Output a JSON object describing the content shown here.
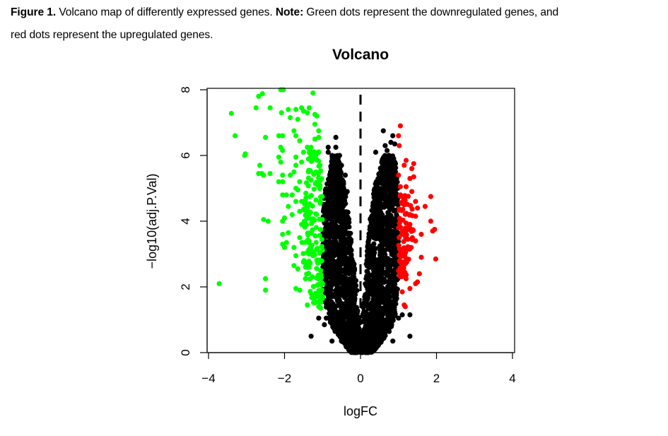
{
  "caption": {
    "figure_label": "Figure 1.",
    "text1": " Volcano map of differently expressed genes. ",
    "note_label": "Note:",
    "text2": " Green dots represent the downregulated genes, and",
    "line2": "red dots represent the upregulated genes."
  },
  "chart_data": {
    "type": "scatter",
    "title": "Volcano",
    "xlabel": "logFC",
    "ylabel": "−log10(adj.P.Val)",
    "xlim": [
      -4,
      4
    ],
    "ylim": [
      0,
      8
    ],
    "xticks": [
      -4,
      -2,
      0,
      2,
      4
    ],
    "xtick_labels": [
      "−4",
      "−2",
      "0",
      "2",
      "4"
    ],
    "yticks": [
      0,
      2,
      4,
      6,
      8
    ],
    "ytick_labels": [
      "0",
      "2",
      "4",
      "6",
      "8"
    ],
    "grid": false,
    "legend": "none",
    "reference_line": {
      "x": 0,
      "style": "dashed",
      "color": "#000000"
    },
    "colors": {
      "down": "#00ff00",
      "up": "#ff0000",
      "ns": "#000000"
    },
    "series": [
      {
        "name": "not significant",
        "color": "#000000",
        "density_envelope": [
          {
            "y": 0.0,
            "left": [
              -0.25,
              0.0
            ],
            "right": [
              0.0,
              0.3
            ]
          },
          {
            "y": 0.5,
            "left": [
              -0.6,
              -0.02
            ],
            "right": [
              0.02,
              0.7
            ]
          },
          {
            "y": 1.0,
            "left": [
              -0.85,
              -0.05
            ],
            "right": [
              0.05,
              0.9
            ]
          },
          {
            "y": 2.0,
            "left": [
              -1.0,
              -0.1
            ],
            "right": [
              0.1,
              1.0
            ]
          },
          {
            "y": 3.0,
            "left": [
              -1.0,
              -0.2
            ],
            "right": [
              0.17,
              1.0
            ]
          },
          {
            "y": 4.0,
            "left": [
              -1.0,
              -0.3
            ],
            "right": [
              0.25,
              1.0
            ]
          },
          {
            "y": 5.0,
            "left": [
              -0.95,
              -0.4
            ],
            "right": [
              0.35,
              0.98
            ]
          },
          {
            "y": 5.5,
            "left": [
              -0.8,
              -0.5
            ],
            "right": [
              0.5,
              0.95
            ]
          },
          {
            "y": 6.0,
            "left": [
              -0.75,
              -0.6
            ],
            "right": [
              0.6,
              0.9
            ]
          }
        ],
        "density_count": 2600,
        "points": [
          [
            -0.65,
            6.55
          ],
          [
            -0.85,
            6.25
          ],
          [
            -0.65,
            6.25
          ],
          [
            -0.55,
            6.0
          ],
          [
            -0.6,
            5.75
          ],
          [
            -0.5,
            5.7
          ],
          [
            -0.4,
            5.4
          ],
          [
            -0.45,
            5.2
          ],
          [
            -0.35,
            4.9
          ],
          [
            0.6,
            6.75
          ],
          [
            0.85,
            6.6
          ],
          [
            0.8,
            6.4
          ],
          [
            0.9,
            6.35
          ],
          [
            0.4,
            6.1
          ],
          [
            0.65,
            6.3
          ],
          [
            0.85,
            5.8
          ],
          [
            0.95,
            5.3
          ],
          [
            -1.3,
            0.5
          ],
          [
            -0.75,
            0.35
          ],
          [
            1.3,
            0.5
          ],
          [
            1.3,
            1.15
          ],
          [
            0.85,
            0.35
          ],
          [
            -1.1,
            1.05
          ],
          [
            -0.9,
            1.05
          ],
          [
            -0.95,
            0.85
          ],
          [
            1.0,
            1.05
          ],
          [
            1.1,
            1.15
          ],
          [
            0.5,
            0.4
          ],
          [
            -0.5,
            0.35
          ],
          [
            -0.85,
            6.1
          ],
          [
            -0.75,
            6.0
          ],
          [
            0.7,
            6.15
          ],
          [
            0.75,
            6.0
          ]
        ]
      },
      {
        "name": "downregulated",
        "color": "#00ff00",
        "density_envelope": [
          {
            "y": 1.5,
            "left": [
              -1.25,
              -1.0
            ]
          },
          {
            "y": 3.0,
            "left": [
              -1.55,
              -1.0
            ]
          },
          {
            "y": 5.0,
            "left": [
              -1.5,
              -1.0
            ]
          },
          {
            "y": 6.2,
            "left": [
              -1.35,
              -1.05
            ]
          }
        ],
        "density_count": 160,
        "points": [
          [
            -3.72,
            2.1
          ],
          [
            -3.4,
            7.28
          ],
          [
            -3.3,
            6.6
          ],
          [
            -3.05,
            6.0
          ],
          [
            -3.03,
            6.05
          ],
          [
            -2.75,
            7.45
          ],
          [
            -2.68,
            7.8
          ],
          [
            -2.58,
            7.88
          ],
          [
            -2.38,
            7.45
          ],
          [
            -2.68,
            5.45
          ],
          [
            -2.6,
            5.45
          ],
          [
            -2.55,
            5.4
          ],
          [
            -2.65,
            5.7
          ],
          [
            -2.38,
            5.45
          ],
          [
            -2.5,
            6.55
          ],
          [
            -2.55,
            4.05
          ],
          [
            -2.43,
            4.0
          ],
          [
            -2.5,
            2.25
          ],
          [
            -2.5,
            1.9
          ],
          [
            -2.1,
            8.0
          ],
          [
            -2.03,
            8.0
          ],
          [
            -2.08,
            7.3
          ],
          [
            -2.05,
            6.6
          ],
          [
            -2.15,
            6.6
          ],
          [
            -2.1,
            6.25
          ],
          [
            -2.05,
            6.15
          ],
          [
            -2.15,
            5.95
          ],
          [
            -2.1,
            5.8
          ],
          [
            -2.05,
            5.4
          ],
          [
            -2.15,
            5.2
          ],
          [
            -2.05,
            5.2
          ],
          [
            -2.05,
            4.8
          ],
          [
            -1.95,
            4.8
          ],
          [
            -2.05,
            4.0
          ],
          [
            -2.0,
            4.1
          ],
          [
            -2.05,
            3.6
          ],
          [
            -2.05,
            3.3
          ],
          [
            -2.0,
            3.2
          ],
          [
            -1.95,
            3.35
          ],
          [
            -1.9,
            3.65
          ],
          [
            -1.9,
            4.45
          ],
          [
            -1.8,
            4.2
          ],
          [
            -1.85,
            5.4
          ],
          [
            -1.9,
            7.4
          ],
          [
            -1.85,
            7.15
          ],
          [
            -1.75,
            6.75
          ],
          [
            -1.7,
            6.6
          ],
          [
            -1.7,
            7.4
          ],
          [
            -1.7,
            5.95
          ],
          [
            -1.65,
            7.1
          ],
          [
            -1.6,
            6.45
          ],
          [
            -1.55,
            7.45
          ],
          [
            -1.5,
            7.35
          ],
          [
            -1.4,
            7.3
          ],
          [
            -1.35,
            7.45
          ],
          [
            -1.25,
            7.9
          ],
          [
            -1.2,
            7.25
          ],
          [
            -1.15,
            7.2
          ],
          [
            -1.2,
            6.95
          ],
          [
            -1.1,
            6.75
          ],
          [
            -1.2,
            6.5
          ],
          [
            -1.1,
            6.55
          ],
          [
            -1.1,
            6.1
          ],
          [
            -1.3,
            6.25
          ],
          [
            -1.4,
            6.25
          ],
          [
            -1.5,
            6.1
          ],
          [
            -1.55,
            5.8
          ],
          [
            -1.7,
            5.7
          ],
          [
            -1.75,
            5.5
          ],
          [
            -1.6,
            5.2
          ],
          [
            -1.7,
            5.0
          ],
          [
            -1.7,
            4.6
          ],
          [
            -1.6,
            4.3
          ],
          [
            -1.75,
            3.2
          ],
          [
            -1.7,
            2.95
          ],
          [
            -1.75,
            2.65
          ],
          [
            -1.65,
            2.55
          ],
          [
            -1.5,
            2.75
          ],
          [
            -1.45,
            2.25
          ],
          [
            -1.45,
            2.6
          ],
          [
            -1.7,
            1.95
          ],
          [
            -1.6,
            1.9
          ],
          [
            -1.4,
            1.45
          ],
          [
            -1.3,
            1.8
          ],
          [
            -1.2,
            1.55
          ],
          [
            -1.1,
            1.4
          ],
          [
            -1.05,
            1.35
          ],
          [
            -1.0,
            1.65
          ],
          [
            -1.0,
            2.1
          ],
          [
            -1.05,
            2.5
          ],
          [
            -1.8,
            4.8
          ],
          [
            -1.65,
            4.95
          ],
          [
            -1.55,
            4.6
          ],
          [
            -1.55,
            3.9
          ],
          [
            -1.6,
            3.5
          ],
          [
            -1.4,
            3.05
          ],
          [
            -1.25,
            2.95
          ],
          [
            -1.35,
            2.6
          ]
        ]
      },
      {
        "name": "upregulated",
        "color": "#ff0000",
        "density_envelope": [
          {
            "y": 2.3,
            "right": [
              1.0,
              1.2
            ]
          },
          {
            "y": 3.5,
            "right": [
              1.0,
              1.4
            ]
          },
          {
            "y": 4.8,
            "right": [
              1.0,
              1.35
            ]
          }
        ],
        "density_count": 90,
        "points": [
          [
            1.05,
            6.9
          ],
          [
            1.0,
            6.6
          ],
          [
            1.02,
            6.3
          ],
          [
            1.2,
            5.85
          ],
          [
            1.15,
            5.7
          ],
          [
            1.4,
            5.75
          ],
          [
            1.35,
            5.6
          ],
          [
            1.4,
            5.35
          ],
          [
            1.3,
            5.3
          ],
          [
            1.0,
            5.4
          ],
          [
            1.05,
            5.05
          ],
          [
            1.2,
            5.05
          ],
          [
            1.35,
            4.9
          ],
          [
            1.45,
            4.6
          ],
          [
            1.5,
            4.4
          ],
          [
            1.7,
            4.45
          ],
          [
            1.85,
            4.75
          ],
          [
            1.85,
            4.0
          ],
          [
            1.95,
            3.75
          ],
          [
            1.9,
            3.7
          ],
          [
            1.6,
            3.6
          ],
          [
            1.45,
            3.4
          ],
          [
            1.6,
            2.9
          ],
          [
            1.98,
            2.85
          ],
          [
            1.55,
            2.4
          ],
          [
            1.5,
            2.15
          ],
          [
            1.45,
            2.1
          ],
          [
            1.3,
            1.95
          ],
          [
            1.2,
            2.25
          ],
          [
            1.1,
            1.85
          ],
          [
            1.15,
            1.45
          ],
          [
            1.18,
            1.4
          ],
          [
            1.0,
            2.5
          ],
          [
            1.1,
            3.0
          ],
          [
            1.2,
            3.5
          ],
          [
            1.3,
            4.2
          ],
          [
            1.15,
            4.5
          ],
          [
            1.05,
            4.8
          ],
          [
            1.0,
            3.8
          ],
          [
            1.45,
            4.15
          ],
          [
            1.3,
            3.9
          ]
        ]
      }
    ]
  }
}
